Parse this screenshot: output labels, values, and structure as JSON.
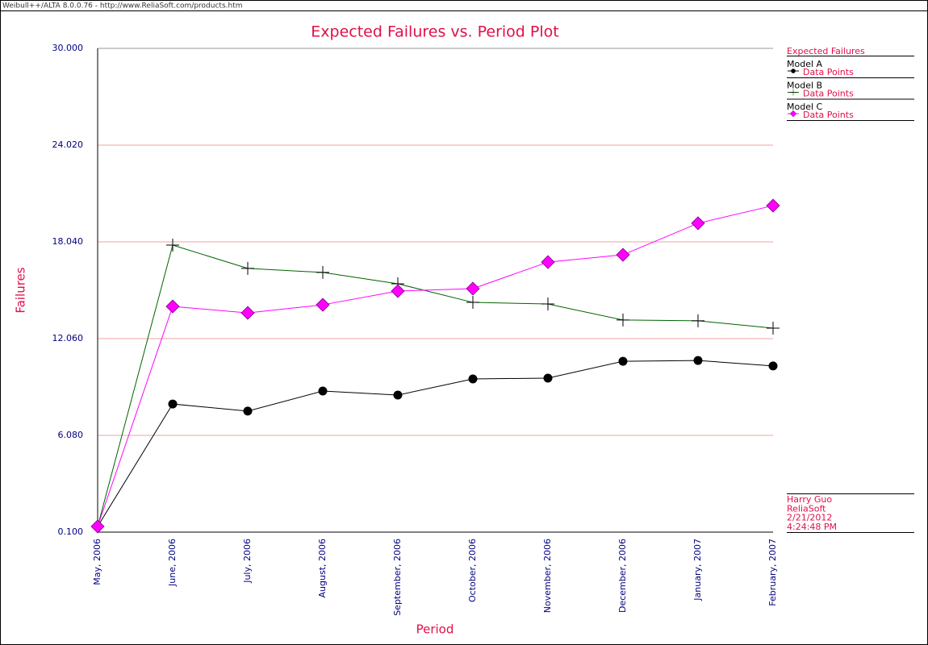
{
  "window_title": "Weibull++/ALTA 8.0.0.76 - http://www.ReliaSoft.com/products.htm",
  "chart_data": {
    "type": "line",
    "title": "Expected Failures vs. Period Plot",
    "x_label": "Period",
    "y_label": "Failures",
    "categories": [
      "May, 2006",
      "June, 2006",
      "July, 2006",
      "August, 2006",
      "September, 2006",
      "October, 2006",
      "November, 2006",
      "December, 2006",
      "January, 2007",
      "February, 2007"
    ],
    "ylim": [
      0.1,
      30
    ],
    "yticks": [
      {
        "value": 0.1,
        "label": "0.100"
      },
      {
        "value": 6.08,
        "label": "6.080"
      },
      {
        "value": 12.06,
        "label": "12.060"
      },
      {
        "value": 18.04,
        "label": "18.040"
      },
      {
        "value": 24.02,
        "label": "24.020"
      },
      {
        "value": 30,
        "label": "30.000"
      }
    ],
    "grid": true,
    "legend_title": "Expected Failures",
    "series": [
      {
        "name": "Model A",
        "legend_label": "Data Points",
        "marker": "circle",
        "color": "#000000",
        "marker_color": "#000000",
        "values": [
          0.45,
          8.02,
          7.58,
          8.82,
          8.57,
          9.57,
          9.62,
          10.66,
          10.71,
          10.37
        ]
      },
      {
        "name": "Model B",
        "legend_label": "Data Points",
        "marker": "plus",
        "color": "#006400",
        "marker_color": "#000000",
        "values": [
          0.45,
          17.84,
          16.4,
          16.15,
          15.45,
          14.3,
          14.2,
          13.21,
          13.16,
          12.71
        ]
      },
      {
        "name": "Model C",
        "legend_label": "Data Points",
        "marker": "diamond",
        "color": "#ff00ff",
        "marker_color": "#ff00ff",
        "values": [
          0.45,
          14.05,
          13.65,
          14.15,
          15.0,
          15.15,
          16.79,
          17.24,
          19.19,
          20.28
        ]
      }
    ],
    "footer": [
      "Harry Guo",
      "ReliaSoft",
      "2/21/2012",
      "4:24:48 PM"
    ]
  }
}
